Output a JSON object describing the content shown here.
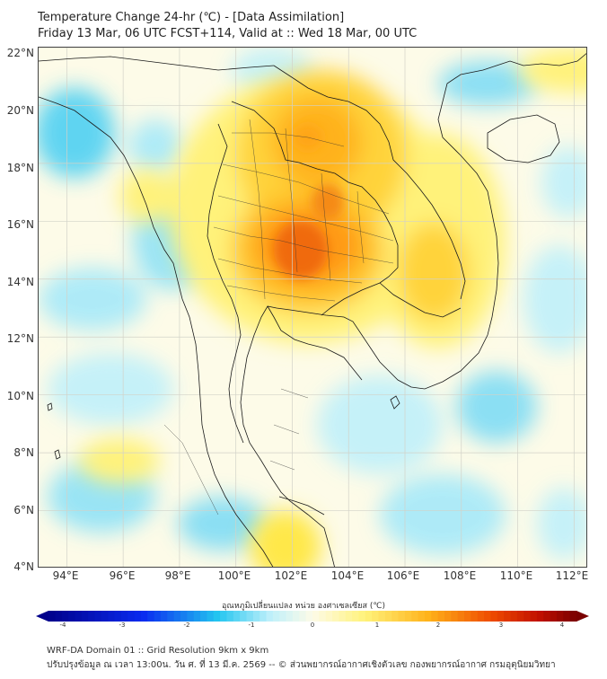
{
  "header": {
    "title_line1": "Temperature Change 24-hr (℃) - [Data Assimilation]",
    "title_line2": "Friday 13 Mar, 06 UTC FCST+114, Valid at :: Wed 18 Mar, 00 UTC"
  },
  "map": {
    "lat_labels": [
      "22°N",
      "20°N",
      "18°N",
      "16°N",
      "14°N",
      "12°N",
      "10°N",
      "8°N",
      "6°N",
      "4°N"
    ],
    "lon_labels": [
      "94°E",
      "96°E",
      "98°E",
      "100°E",
      "102°E",
      "104°E",
      "106°E",
      "108°E",
      "110°E",
      "112°E"
    ],
    "lat_range": [
      4,
      22
    ],
    "lon_range": [
      93,
      112.5
    ],
    "grid": true,
    "colors": {
      "cold_max": "#00008b",
      "cold_mid": "#22c5f0",
      "neutral": "#fdfbe8",
      "warm_light": "#fff27a",
      "warm_mid": "#ffb21a",
      "hot": "#ee4a00",
      "hot_max": "#7a0000",
      "border": "#1a1a1a"
    }
  },
  "colorbar": {
    "title": "อุณหภูมิเปลี่ยนแปลง หน่วย องศาเซลเซียส (℃)",
    "ticks": [
      "-4",
      "-3",
      "-2",
      "-1",
      "0",
      "1",
      "2",
      "3",
      "4"
    ],
    "range": [
      -4,
      4
    ]
  },
  "footer": {
    "line1": "WRF-DA Domain 01 :: Grid Resolution 9km x 9km",
    "line2": "ปรับปรุงข้อมูล ณ เวลา 13:00น. วัน ศ. ที่ 13 มี.ค. 2569 -- © ส่วนพยากรณ์อากาศเชิงตัวเลข กองพยากรณ์อากาศ กรมอุตุนิยมวิทยา"
  }
}
